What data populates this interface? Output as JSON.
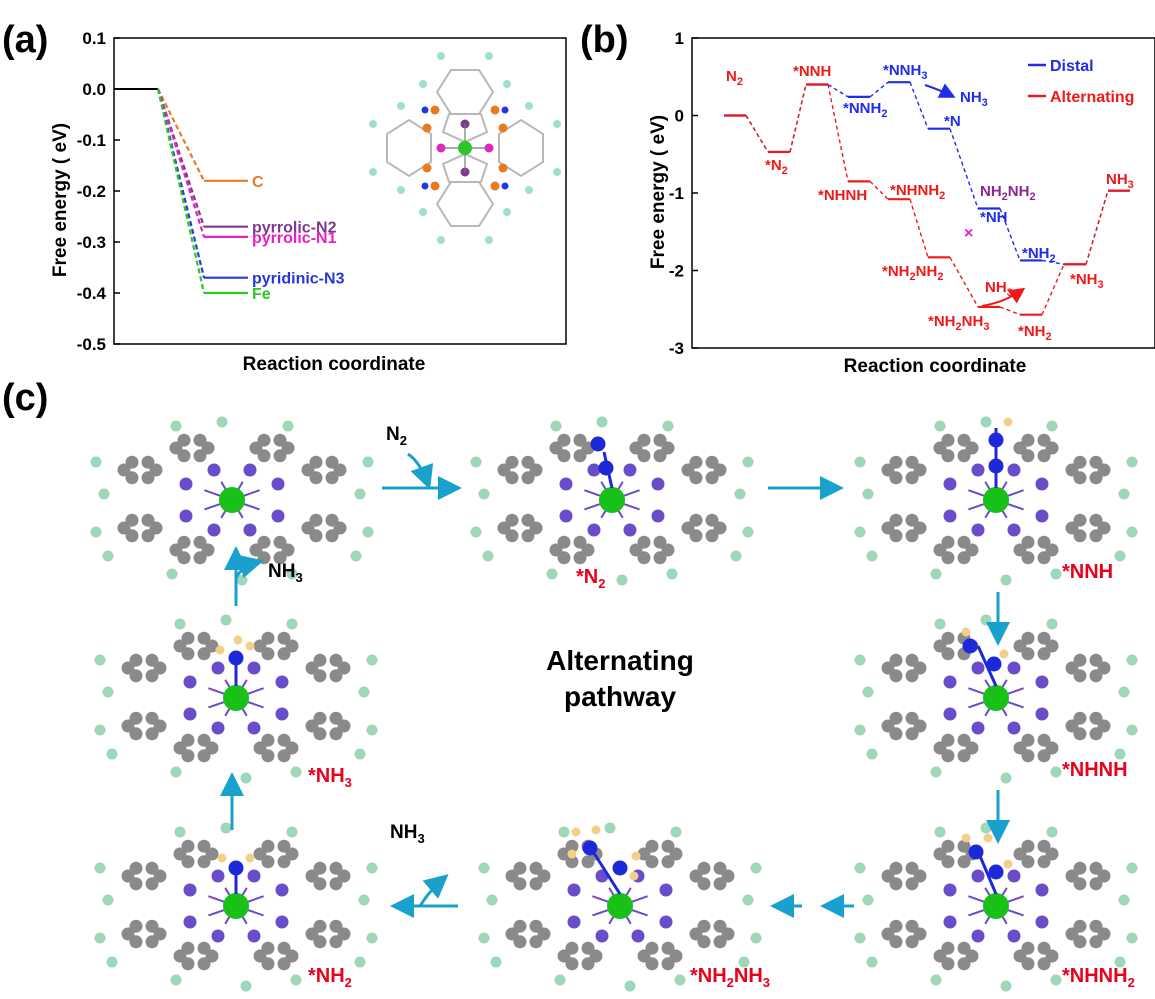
{
  "panels": {
    "a": {
      "letter": "(a)"
    },
    "b": {
      "letter": "(b)"
    },
    "c": {
      "letter": "(c)"
    }
  },
  "colors": {
    "C": "#e87a24",
    "pyrrolic-N2": "#7d3a8c",
    "pyrrolic-N1": "#e81ec8",
    "pyridinic-N3": "#2637e0",
    "Fe": "#28c828",
    "distal": "#1f2ce8",
    "alternating": "#ee1a1a",
    "arrow": "#1aa0cc",
    "carbon": "#8a8a8a",
    "nitrogen": "#6a4cc8",
    "hydrogen_edge": "#9ed8b8",
    "iron": "#18c018",
    "ads_n": "#1d28d8",
    "ads_h": "#f3cf8a"
  },
  "chart_data": [
    {
      "panel": "a",
      "type": "line",
      "xlabel": "Reaction coordinate",
      "ylabel": "Free energy ( eV)",
      "ylim": [
        -0.5,
        0.1
      ],
      "yticks": [
        "0.1",
        "0.0",
        "-0.1",
        "-0.2",
        "-0.3",
        "-0.4",
        "-0.5"
      ],
      "ytick_values": [
        0.1,
        0.0,
        -0.1,
        -0.2,
        -0.3,
        -0.4,
        -0.5
      ],
      "initial_state": 0.0,
      "series": [
        {
          "name": "C",
          "values": [
            0.0,
            -0.18
          ]
        },
        {
          "name": "pyrrolic-N2",
          "values": [
            0.0,
            -0.27
          ]
        },
        {
          "name": "pyrrolic-N1",
          "values": [
            0.0,
            -0.29
          ]
        },
        {
          "name": "pyridinic-N3",
          "values": [
            0.0,
            -0.37
          ]
        },
        {
          "name": "Fe",
          "values": [
            0.0,
            -0.4
          ]
        }
      ]
    },
    {
      "panel": "b",
      "type": "line",
      "xlabel": "Reaction coordinate",
      "ylabel": "Free energy ( eV)",
      "ylim": [
        -3,
        1
      ],
      "yticks": [
        "1",
        "0",
        "-1",
        "-2",
        "-3"
      ],
      "ytick_values": [
        1,
        0,
        -1,
        -2,
        -3
      ],
      "legend": [
        "Distal",
        "Alternating"
      ],
      "legend_placement": "top-right",
      "series": [
        {
          "name": "Distal",
          "steps": [
            "N2",
            "*N2",
            "*NNH",
            "*NNH2",
            "*NNH3",
            "*N",
            "*NH",
            "*NH2",
            "*NH3",
            "NH3"
          ],
          "values": [
            0.0,
            -0.47,
            0.4,
            0.24,
            0.43,
            -0.17,
            -1.2,
            -1.87,
            -1.92,
            -0.97
          ]
        },
        {
          "name": "Alternating",
          "steps": [
            "N2",
            "*N2",
            "*NNH",
            "*NHNH",
            "*NHNH2",
            "*NH2NH2",
            "*NH2NH3",
            "*NH2",
            "*NH3",
            "NH3"
          ],
          "values": [
            0.0,
            -0.47,
            0.4,
            -0.85,
            -1.08,
            -1.83,
            -2.47,
            -2.57,
            -1.92,
            -0.97
          ]
        }
      ],
      "labels": {
        "n2": "N2",
        "star_n2": "*N2",
        "nnh": "*NNH",
        "nnh3": "*NNH3",
        "nnh2": "*NNH2",
        "nh3_gas_distal": "NH3",
        "star_n": "*N",
        "nhnh": "*NHNH",
        "nhnh2": "*NHNH2",
        "nh2nh2_top": "NH2NH2",
        "star_nh": "*NH",
        "star_nh2_blue": "*NH2",
        "nh2nh2": "*NH2NH2",
        "star_nh3": "*NH3",
        "nh3_gas_alt": "NH3",
        "nh2nh3": "*NH2NH3",
        "star_nh2_red": "*NH2",
        "nh3_final": "NH3"
      }
    }
  ],
  "cycle": {
    "title_line1": "Alternating",
    "title_line2": "pathway",
    "gas_in": "N2",
    "gas_out_left": "NH3",
    "gas_out_bottom": "NH3",
    "states": [
      "*N2",
      "*NNH",
      "*NHNH",
      "*NHNH2",
      "*NH2NH3",
      "*NH2",
      "*NH3"
    ]
  }
}
